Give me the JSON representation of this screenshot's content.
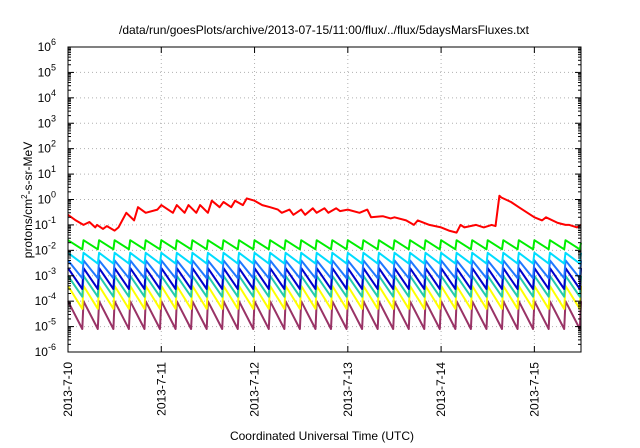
{
  "chart_data": {
    "type": "line",
    "title": "/data/run/goesPlots/archive/2013-07-15/11:00/flux/../flux/5daysMarsFluxes.txt",
    "xlabel": "Coordinated Universal Time (UTC)",
    "ylabel_parts": [
      "protons/cm",
      "2",
      "-s-sr-MeV"
    ],
    "y_scale": "log",
    "ylim": [
      1e-06,
      1000000.0
    ],
    "y_ticks": [
      {
        "base": "10",
        "exp": "-6",
        "value": 1e-06
      },
      {
        "base": "10",
        "exp": "-5",
        "value": 1e-05
      },
      {
        "base": "10",
        "exp": "-4",
        "value": 0.0001
      },
      {
        "base": "10",
        "exp": "-3",
        "value": 0.001
      },
      {
        "base": "10",
        "exp": "-2",
        "value": 0.01
      },
      {
        "base": "10",
        "exp": "-1",
        "value": 0.1
      },
      {
        "base": "10",
        "exp": "0",
        "value": 1
      },
      {
        "base": "10",
        "exp": "1",
        "value": 10
      },
      {
        "base": "10",
        "exp": "2",
        "value": 100
      },
      {
        "base": "10",
        "exp": "3",
        "value": 1000
      },
      {
        "base": "10",
        "exp": "4",
        "value": 10000
      },
      {
        "base": "10",
        "exp": "5",
        "value": 100000
      },
      {
        "base": "10",
        "exp": "6",
        "value": 1000000
      }
    ],
    "xlim": [
      "2013-07-10 00:00",
      "2013-07-15 12:00"
    ],
    "x_ticks": [
      "2013-7-10",
      "2013-7-11",
      "2013-7-12",
      "2013-7-13",
      "2013-7-14",
      "2013-7-15"
    ],
    "grid": true,
    "series": [
      {
        "color": "#ff0000",
        "x": [
          "2013-07-10 00:00",
          "2013-07-10 02:00",
          "2013-07-10 04:00",
          "2013-07-10 05:30",
          "2013-07-10 07:00",
          "2013-07-10 07:30",
          "2013-07-10 09:00",
          "2013-07-10 10:00",
          "2013-07-10 12:00",
          "2013-07-10 13:00",
          "2013-07-10 15:00",
          "2013-07-10 17:00",
          "2013-07-10 18:00",
          "2013-07-10 20:00",
          "2013-07-10 23:00",
          "2013-07-11 00:00",
          "2013-07-11 03:00",
          "2013-07-11 04:00",
          "2013-07-11 06:00",
          "2013-07-11 07:00",
          "2013-07-11 09:00",
          "2013-07-11 10:00",
          "2013-07-11 12:00",
          "2013-07-11 13:00",
          "2013-07-11 15:00",
          "2013-07-11 16:00",
          "2013-07-11 18:00",
          "2013-07-11 19:00",
          "2013-07-11 21:00",
          "2013-07-11 22:00",
          "2013-07-12 00:00",
          "2013-07-12 02:00",
          "2013-07-12 04:00",
          "2013-07-12 06:00",
          "2013-07-12 07:00",
          "2013-07-12 09:00",
          "2013-07-12 10:00",
          "2013-07-12 12:00",
          "2013-07-12 13:00",
          "2013-07-12 15:00",
          "2013-07-12 16:00",
          "2013-07-12 18:00",
          "2013-07-12 19:00",
          "2013-07-12 21:00",
          "2013-07-12 22:00",
          "2013-07-13 00:00",
          "2013-07-13 03:00",
          "2013-07-13 05:00",
          "2013-07-13 06:00",
          "2013-07-13 09:00",
          "2013-07-13 11:00",
          "2013-07-13 12:00",
          "2013-07-13 15:00",
          "2013-07-13 17:00",
          "2013-07-13 18:00",
          "2013-07-13 21:00",
          "2013-07-14 00:00",
          "2013-07-14 02:00",
          "2013-07-14 04:00",
          "2013-07-14 05:00",
          "2013-07-14 06:00",
          "2013-07-14 09:00",
          "2013-07-14 11:00",
          "2013-07-14 13:00",
          "2013-07-14 14:00",
          "2013-07-14 15:00",
          "2013-07-14 15:30",
          "2013-07-14 18:00",
          "2013-07-14 20:00",
          "2013-07-15 00:00",
          "2013-07-15 02:00",
          "2013-07-15 03:00",
          "2013-07-15 06:00",
          "2013-07-15 08:00",
          "2013-07-15 09:00",
          "2013-07-15 11:00",
          "2013-07-15 12:00"
        ],
        "y": [
          0.25,
          0.15,
          0.1,
          0.13,
          0.08,
          0.1,
          0.07,
          0.09,
          0.06,
          0.08,
          0.3,
          0.15,
          0.5,
          0.3,
          0.4,
          0.6,
          0.3,
          0.6,
          0.3,
          0.6,
          0.3,
          0.6,
          0.3,
          0.9,
          0.5,
          0.8,
          0.5,
          0.9,
          0.6,
          1.1,
          0.9,
          0.6,
          0.5,
          0.4,
          0.3,
          0.4,
          0.25,
          0.4,
          0.25,
          0.45,
          0.3,
          0.45,
          0.3,
          0.45,
          0.35,
          0.4,
          0.3,
          0.4,
          0.2,
          0.22,
          0.18,
          0.2,
          0.15,
          0.1,
          0.15,
          0.1,
          0.08,
          0.06,
          0.05,
          0.1,
          0.08,
          0.1,
          0.08,
          0.1,
          0.09,
          1.4,
          1.2,
          0.8,
          0.5,
          0.2,
          0.15,
          0.2,
          0.12,
          0.1,
          0.1,
          0.08,
          0.1
        ]
      },
      {
        "color": "#00ee00",
        "start": "2013-07-10 00:00",
        "period_hours": 4,
        "cycles": 33,
        "peak": 0.025,
        "trough": 0.011,
        "last_peak": 0.02
      },
      {
        "color": "#00ddff",
        "start": "2013-07-10 00:00",
        "period_hours": 4,
        "cycles": 33,
        "peak": 0.008,
        "trough": 0.003,
        "last_peak": 0.008
      },
      {
        "color": "#1f77ff",
        "start": "2013-07-10 00:00",
        "period_hours": 4,
        "cycles": 33,
        "peak": 0.004,
        "trough": 0.0008,
        "last_peak": 0.004
      },
      {
        "color": "#0000cc",
        "start": "2013-07-10 00:00",
        "period_hours": 4,
        "cycles": 33,
        "peak": 0.002,
        "trough": 0.0003,
        "last_peak": 0.002
      },
      {
        "color": "#22ccaa",
        "start": "2013-07-10 00:00",
        "period_hours": 4,
        "cycles": 33,
        "peak": 0.001,
        "trough": 0.00015,
        "last_peak": 0.001
      },
      {
        "color": "#ffff00",
        "start": "2013-07-10 00:00",
        "period_hours": 4,
        "cycles": 33,
        "peak": 0.0004,
        "trough": 5e-05,
        "last_peak": 0.0004
      },
      {
        "color": "#993366",
        "start": "2013-07-10 00:00",
        "period_hours": 4,
        "cycles": 33,
        "peak": 0.0001,
        "trough": 8e-06,
        "last_peak": 0.0001
      }
    ]
  }
}
